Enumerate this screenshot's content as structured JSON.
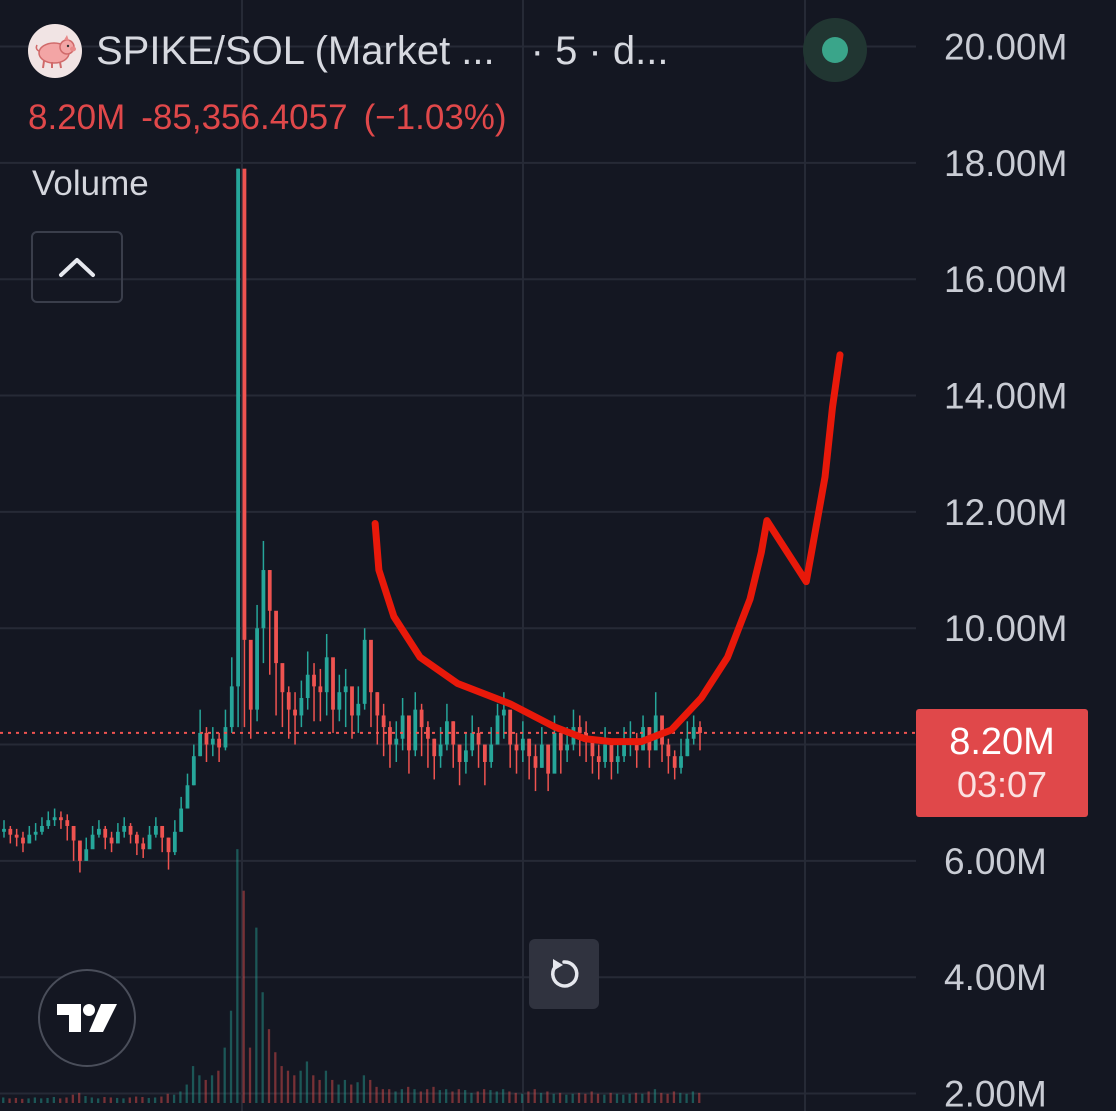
{
  "header": {
    "title": "SPIKE/SOL (Market ...",
    "interval": "· 5 · d...",
    "logo_icon": "pig-mascot-icon",
    "status_color": "#3aa58a"
  },
  "quote": {
    "last": "8.20M",
    "change": "-85,356.4057",
    "change_pct": "(−1.03%)",
    "color": "#e0484a"
  },
  "volume_label": "Volume",
  "price_label": {
    "price": "8.20M",
    "countdown": "03:07"
  },
  "colors": {
    "up": "#26a69a",
    "down": "#ef5350",
    "annotation": "#e8190a",
    "background": "#141722"
  },
  "chart_data": {
    "type": "candlestick",
    "ylim": [
      1.7,
      20.8
    ],
    "y_ticks": [
      {
        "value": 20,
        "label": "20.00M"
      },
      {
        "value": 18,
        "label": "18.00M"
      },
      {
        "value": 16,
        "label": "16.00M"
      },
      {
        "value": 14,
        "label": "14.00M"
      },
      {
        "value": 12,
        "label": "12.00M"
      },
      {
        "value": 10,
        "label": "10.00M"
      },
      {
        "value": 6,
        "label": "6.00M"
      },
      {
        "value": 4,
        "label": "4.00M"
      },
      {
        "value": 2,
        "label": "2.00M"
      }
    ],
    "current_price": 8.2,
    "series_close": [
      6.55,
      6.45,
      6.4,
      6.3,
      6.45,
      6.5,
      6.6,
      6.7,
      6.75,
      6.7,
      6.6,
      6.35,
      6.0,
      6.2,
      6.45,
      6.55,
      6.4,
      6.3,
      6.5,
      6.6,
      6.45,
      6.3,
      6.2,
      6.45,
      6.6,
      6.4,
      6.15,
      6.5,
      6.9,
      7.3,
      7.8,
      8.2,
      8.0,
      8.1,
      7.95,
      8.3,
      9.0,
      17.9,
      9.8,
      8.6,
      10.0,
      11.0,
      10.3,
      9.4,
      8.9,
      8.6,
      8.5,
      8.8,
      9.2,
      9.0,
      8.9,
      9.5,
      8.6,
      8.9,
      9.0,
      8.5,
      8.7,
      9.8,
      8.9,
      8.5,
      8.3,
      8.0,
      8.1,
      8.5,
      7.9,
      8.6,
      8.3,
      8.1,
      7.8,
      8.0,
      8.4,
      8.0,
      7.7,
      7.9,
      8.2,
      8.0,
      7.7,
      8.0,
      8.5,
      8.6,
      8.0,
      7.9,
      8.1,
      7.8,
      7.6,
      8.0,
      7.5,
      8.2,
      7.9,
      8.0,
      8.3,
      8.2,
      8.1,
      7.8,
      7.7,
      8.0,
      7.7,
      7.8,
      8.0,
      8.1,
      7.9,
      8.3,
      7.9,
      8.5,
      8.0,
      7.8,
      7.6,
      7.8,
      8.1,
      8.3,
      8.2
    ],
    "series_high": [
      6.7,
      6.6,
      6.55,
      6.5,
      6.6,
      6.65,
      6.75,
      6.85,
      6.9,
      6.85,
      6.8,
      6.6,
      6.3,
      6.4,
      6.6,
      6.7,
      6.6,
      6.5,
      6.65,
      6.75,
      6.65,
      6.5,
      6.4,
      6.6,
      6.75,
      6.6,
      6.4,
      6.7,
      7.1,
      7.5,
      8.0,
      8.6,
      8.3,
      8.3,
      8.2,
      8.6,
      9.5,
      17.9,
      12.1,
      9.2,
      10.4,
      11.5,
      11.0,
      10.0,
      9.3,
      9.0,
      8.9,
      9.1,
      9.6,
      9.4,
      9.3,
      9.9,
      9.2,
      9.2,
      9.3,
      8.9,
      9.0,
      10.0,
      9.6,
      8.9,
      8.7,
      8.4,
      8.4,
      8.8,
      8.4,
      8.9,
      8.7,
      8.4,
      8.1,
      8.3,
      8.7,
      8.4,
      8.0,
      8.2,
      8.5,
      8.3,
      8.0,
      8.3,
      8.7,
      8.9,
      8.5,
      8.2,
      8.4,
      8.1,
      8.0,
      8.3,
      8.0,
      8.5,
      8.3,
      8.3,
      8.6,
      8.5,
      8.4,
      8.1,
      8.0,
      8.3,
      8.0,
      8.1,
      8.3,
      8.4,
      8.2,
      8.5,
      8.3,
      8.9,
      8.4,
      8.1,
      7.9,
      8.1,
      8.4,
      8.5,
      8.4
    ],
    "series_low": [
      6.4,
      6.3,
      6.25,
      6.15,
      6.3,
      6.35,
      6.45,
      6.55,
      6.6,
      6.55,
      6.35,
      6.0,
      5.8,
      6.0,
      6.3,
      6.4,
      6.2,
      6.15,
      6.35,
      6.4,
      6.3,
      6.1,
      6.05,
      6.25,
      6.4,
      6.15,
      5.85,
      6.1,
      6.5,
      6.9,
      7.3,
      7.8,
      7.7,
      7.8,
      7.7,
      7.9,
      8.2,
      8.3,
      8.3,
      8.1,
      8.4,
      9.4,
      9.2,
      8.5,
      8.3,
      8.1,
      8.0,
      8.3,
      8.6,
      8.4,
      8.4,
      8.5,
      8.2,
      8.4,
      8.3,
      8.1,
      8.2,
      8.6,
      8.3,
      8.0,
      7.8,
      7.6,
      7.7,
      7.9,
      7.5,
      7.8,
      7.8,
      7.6,
      7.4,
      7.6,
      7.9,
      7.6,
      7.3,
      7.5,
      7.8,
      7.6,
      7.3,
      7.6,
      8.0,
      8.1,
      7.6,
      7.5,
      7.7,
      7.4,
      7.2,
      7.6,
      7.2,
      7.7,
      7.5,
      7.7,
      7.9,
      7.8,
      7.7,
      7.5,
      7.4,
      7.6,
      7.4,
      7.5,
      7.7,
      7.8,
      7.6,
      7.9,
      7.6,
      8.0,
      7.7,
      7.5,
      7.4,
      7.5,
      7.8,
      8.0,
      7.9
    ],
    "series_volume": [
      0.12,
      0.1,
      0.11,
      0.09,
      0.1,
      0.12,
      0.1,
      0.11,
      0.13,
      0.1,
      0.12,
      0.18,
      0.22,
      0.15,
      0.12,
      0.1,
      0.13,
      0.12,
      0.11,
      0.1,
      0.12,
      0.14,
      0.13,
      0.11,
      0.12,
      0.14,
      0.2,
      0.18,
      0.25,
      0.4,
      0.8,
      0.6,
      0.5,
      0.6,
      0.7,
      1.2,
      2.0,
      5.5,
      4.6,
      1.2,
      3.8,
      2.4,
      1.6,
      1.1,
      0.8,
      0.7,
      0.6,
      0.7,
      0.9,
      0.6,
      0.5,
      0.7,
      0.5,
      0.4,
      0.5,
      0.4,
      0.45,
      0.6,
      0.5,
      0.35,
      0.3,
      0.3,
      0.25,
      0.3,
      0.35,
      0.3,
      0.25,
      0.3,
      0.35,
      0.28,
      0.3,
      0.25,
      0.3,
      0.28,
      0.22,
      0.25,
      0.3,
      0.28,
      0.25,
      0.3,
      0.25,
      0.22,
      0.2,
      0.25,
      0.3,
      0.22,
      0.25,
      0.2,
      0.22,
      0.18,
      0.2,
      0.22,
      0.2,
      0.25,
      0.2,
      0.18,
      0.22,
      0.2,
      0.18,
      0.2,
      0.22,
      0.2,
      0.25,
      0.3,
      0.22,
      0.2,
      0.25,
      0.22,
      0.2,
      0.25,
      0.22
    ],
    "annotation_path": [
      [
        9.9,
        11.8
      ],
      [
        10.0,
        11.0
      ],
      [
        10.4,
        10.2
      ],
      [
        11.1,
        9.5
      ],
      [
        12.1,
        9.05
      ],
      [
        13.5,
        8.7
      ],
      [
        14.7,
        8.3
      ],
      [
        15.5,
        8.1
      ],
      [
        16.2,
        8.05
      ],
      [
        17.0,
        8.05
      ],
      [
        17.8,
        8.25
      ],
      [
        18.6,
        8.8
      ],
      [
        19.3,
        9.5
      ],
      [
        19.9,
        10.5
      ],
      [
        20.2,
        11.3
      ],
      [
        20.35,
        11.85
      ],
      [
        21.1,
        11.1
      ],
      [
        21.4,
        10.8
      ],
      [
        21.9,
        12.6
      ],
      [
        22.1,
        13.8
      ],
      [
        22.3,
        14.7
      ]
    ]
  }
}
